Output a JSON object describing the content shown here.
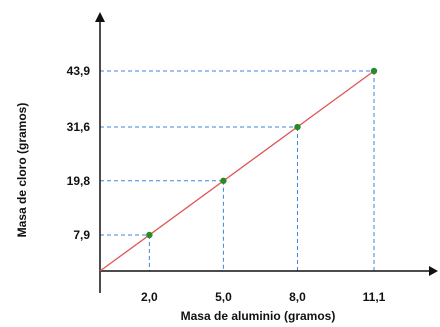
{
  "chart_data": {
    "type": "line",
    "xlabel": "Masa de aluminio (gramos)",
    "ylabel": "Masa de cloro (gramos)",
    "x": [
      2.0,
      5.0,
      8.0,
      11.1
    ],
    "y": [
      7.9,
      19.8,
      31.6,
      43.9
    ],
    "x_tick_labels": [
      "2,0",
      "5,0",
      "8,0",
      "11,1"
    ],
    "y_tick_labels": [
      "7,9",
      "19,8",
      "31,6",
      "43,9"
    ],
    "origin": [
      0,
      0
    ],
    "xlim": [
      0,
      13.5
    ],
    "ylim": [
      0,
      54
    ],
    "grid": false,
    "colors": {
      "line": "#e25555",
      "point": "#2a8a2a",
      "guide": "#3b86e0",
      "axis": "#111111"
    }
  }
}
